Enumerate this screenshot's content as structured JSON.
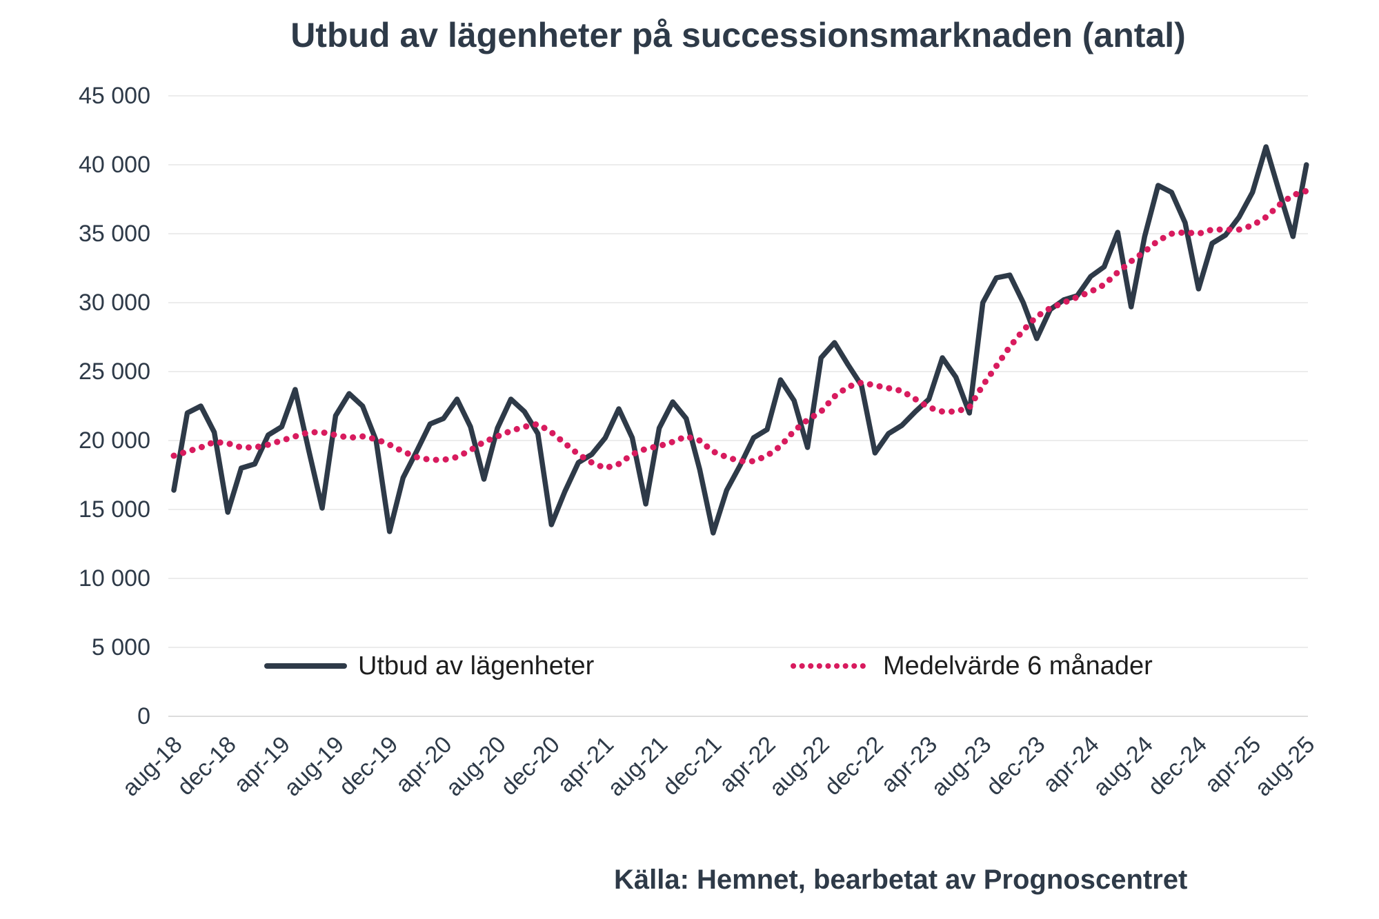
{
  "title": "Utbud av lägenheter på successionsmarknaden (antal)",
  "source": "Källa: Hemnet, bearbetat av Prognoscentret",
  "colors": {
    "utbud_line": "#2e3a48",
    "medelvarde_line": "#d81b5e",
    "gridline": "#ececec",
    "axis_line": "#dcdcdc",
    "axis_text": "#2e3a48",
    "legend_text": "#1d1d1d",
    "title_text": "#2e3a48"
  },
  "chart_data": {
    "type": "line",
    "title": "Utbud av lägenheter på successionsmarknaden (antal)",
    "xlabel": "",
    "ylabel": "",
    "ylim": [
      0,
      45000
    ],
    "ytick_step": 5000,
    "ytick_labels": [
      "0",
      "5 000",
      "10 000",
      "15 000",
      "20 000",
      "25 000",
      "30 000",
      "35 000",
      "40 000",
      "45 000"
    ],
    "grid": "horizontal",
    "legend_position": "bottom-inside",
    "xtick_every": 4,
    "xtick_labels": [
      "aug-18",
      "dec-18",
      "apr-19",
      "aug-19",
      "dec-19",
      "apr-20",
      "aug-20",
      "dec-20",
      "apr-21",
      "aug-21",
      "dec-21",
      "apr-22",
      "aug-22",
      "dec-22",
      "apr-23",
      "aug-23",
      "dec-23",
      "apr-24",
      "aug-24",
      "dec-24",
      "apr-25",
      "aug-25"
    ],
    "x": [
      "aug-18",
      "sep-18",
      "okt-18",
      "nov-18",
      "dec-18",
      "jan-19",
      "feb-19",
      "mar-19",
      "apr-19",
      "maj-19",
      "jun-19",
      "jul-19",
      "aug-19",
      "sep-19",
      "okt-19",
      "nov-19",
      "dec-19",
      "jan-20",
      "feb-20",
      "mar-20",
      "apr-20",
      "maj-20",
      "jun-20",
      "jul-20",
      "aug-20",
      "sep-20",
      "okt-20",
      "nov-20",
      "dec-20",
      "jan-21",
      "feb-21",
      "mar-21",
      "apr-21",
      "maj-21",
      "jun-21",
      "jul-21",
      "aug-21",
      "sep-21",
      "okt-21",
      "nov-21",
      "dec-21",
      "jan-22",
      "feb-22",
      "mar-22",
      "apr-22",
      "maj-22",
      "jun-22",
      "jul-22",
      "aug-22",
      "sep-22",
      "okt-22",
      "nov-22",
      "dec-22",
      "jan-23",
      "feb-23",
      "mar-23",
      "apr-23",
      "maj-23",
      "jun-23",
      "jul-23",
      "aug-23",
      "sep-23",
      "okt-23",
      "nov-23",
      "dec-23",
      "jan-24",
      "feb-24",
      "mar-24",
      "apr-24",
      "maj-24",
      "jun-24",
      "jul-24",
      "aug-24",
      "sep-24",
      "okt-24",
      "nov-24",
      "dec-24",
      "jan-25",
      "feb-25",
      "mar-25",
      "apr-25",
      "maj-25",
      "jun-25",
      "jul-25",
      "aug-25"
    ],
    "series": [
      {
        "name": "Utbud av lägenheter",
        "style": "solid",
        "color": "#2e3a48",
        "values": [
          16400,
          22000,
          22500,
          20600,
          14800,
          18000,
          18300,
          20400,
          21000,
          23700,
          19300,
          15100,
          21800,
          23400,
          22500,
          20000,
          13400,
          17300,
          19200,
          21200,
          21600,
          23000,
          21000,
          17200,
          20900,
          23000,
          22100,
          20500,
          13900,
          16300,
          18400,
          19000,
          20200,
          22300,
          20200,
          15400,
          20900,
          22800,
          21600,
          17900,
          13300,
          16400,
          18200,
          20200,
          20800,
          24400,
          22900,
          19500,
          26000,
          27100,
          25500,
          24000,
          19100,
          20500,
          21100,
          22100,
          23000,
          26000,
          24600,
          22000,
          30000,
          31800,
          32000,
          30000,
          27400,
          29500,
          30200,
          30500,
          31900,
          32600,
          35100,
          29700,
          34800,
          38500,
          38000,
          35800,
          31000,
          34300,
          34900,
          36200,
          38000,
          41300,
          38000,
          34800,
          40000
        ]
      },
      {
        "name": "Medelvärde 6 månader",
        "style": "dotted",
        "color": "#d81b5e",
        "values": [
          18900,
          19200,
          19500,
          19900,
          19800,
          19500,
          19500,
          19700,
          20000,
          20300,
          20600,
          20600,
          20400,
          20200,
          20300,
          20100,
          19700,
          19200,
          18800,
          18600,
          18600,
          18800,
          19300,
          19900,
          20300,
          20700,
          21000,
          21200,
          20600,
          19800,
          19000,
          18400,
          18000,
          18300,
          19000,
          19400,
          19600,
          19900,
          20300,
          20000,
          19200,
          18800,
          18500,
          18500,
          18900,
          19600,
          20700,
          21500,
          22100,
          23200,
          23900,
          24200,
          24000,
          23800,
          23600,
          23000,
          22400,
          22100,
          22100,
          22400,
          24000,
          25400,
          26800,
          28000,
          29000,
          29600,
          30000,
          30400,
          30800,
          31300,
          32200,
          33000,
          33700,
          34500,
          35000,
          35100,
          35000,
          35300,
          35300,
          35300,
          35600,
          36200,
          37100,
          37800,
          38100
        ]
      }
    ]
  }
}
